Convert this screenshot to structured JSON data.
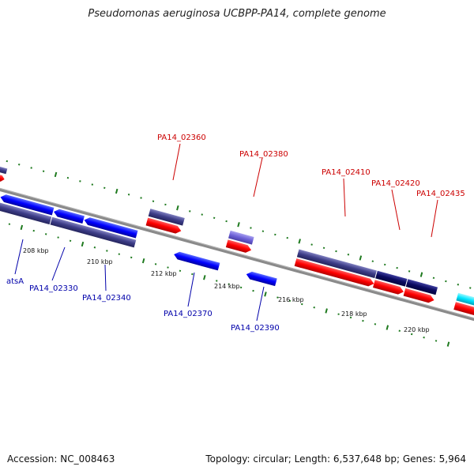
{
  "title": "Pseudomonas aeruginosa UCBPP-PA14, complete genome",
  "footer": {
    "accession": "Accession: NC_008463",
    "summary": "Topology: circular; Length: 6,537,648 bp; Genes: 5,964"
  },
  "colors": {
    "forward_gene": "#ff0000",
    "reverse_gene": "#0000ff",
    "dark_gene": "#3d3d88",
    "backbone": "#8a8a8a",
    "tick": "#1f7a1f",
    "label_forward": "#cc0000",
    "label_reverse": "#0000aa",
    "cyan_gene": "#00e5ff"
  },
  "scale_ticks": [
    "208 kbp",
    "210 kbp",
    "212 kbp",
    "214 kbp",
    "216 kbp",
    "218 kbp",
    "220 kbp"
  ],
  "gene_labels_forward": [
    "PA14_02360",
    "PA14_02380",
    "PA14_02410",
    "PA14_02420",
    "PA14_02435"
  ],
  "gene_labels_reverse": [
    "atsA",
    "PA14_02330",
    "PA14_02340",
    "PA14_02370",
    "PA14_02390"
  ]
}
